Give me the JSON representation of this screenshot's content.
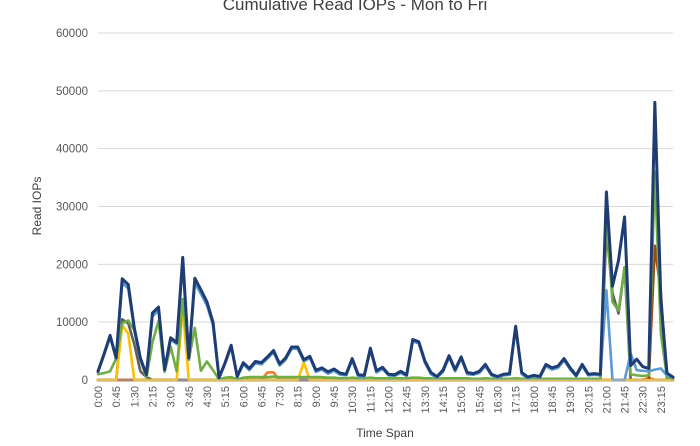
{
  "chart_data": {
    "type": "line",
    "title": "Cumulative Read IOPs - Mon to Fri",
    "xlabel": "Time Span",
    "ylabel": "Read IOPs",
    "ylim": [
      0,
      60000
    ],
    "yticks": [
      "0",
      "10000",
      "20000",
      "30000",
      "40000",
      "50000",
      "60000"
    ],
    "grid": true,
    "legend": "none",
    "x": [
      "0:00",
      "0:15",
      "0:30",
      "0:45",
      "1:00",
      "1:15",
      "1:30",
      "1:45",
      "2:00",
      "2:15",
      "2:30",
      "2:45",
      "3:00",
      "3:15",
      "3:30",
      "3:45",
      "4:00",
      "4:15",
      "4:30",
      "4:45",
      "5:00",
      "5:15",
      "5:30",
      "5:45",
      "6:00",
      "6:15",
      "6:30",
      "6:45",
      "7:00",
      "7:15",
      "7:30",
      "7:45",
      "8:00",
      "8:15",
      "8:30",
      "8:45",
      "9:00",
      "9:15",
      "9:30",
      "9:45",
      "10:00",
      "10:15",
      "10:30",
      "10:45",
      "11:00",
      "11:15",
      "11:30",
      "11:45",
      "12:00",
      "12:15",
      "12:30",
      "12:45",
      "13:00",
      "13:15",
      "13:30",
      "13:45",
      "14:00",
      "14:15",
      "14:30",
      "14:45",
      "15:00",
      "15:15",
      "15:30",
      "15:45",
      "16:00",
      "16:15",
      "16:30",
      "16:45",
      "17:00",
      "17:15",
      "17:30",
      "17:45",
      "18:00",
      "18:15",
      "18:30",
      "18:45",
      "19:00",
      "19:15",
      "19:30",
      "19:45",
      "20:00",
      "20:15",
      "20:30",
      "20:45",
      "21:00",
      "21:15",
      "21:30",
      "21:45",
      "22:00",
      "22:15",
      "22:30",
      "22:45",
      "23:00",
      "23:15",
      "23:30",
      "23:45"
    ],
    "xtick_labels": [
      "0:00",
      "0:45",
      "1:30",
      "2:15",
      "3:00",
      "3:45",
      "4:30",
      "5:15",
      "6:00",
      "6:45",
      "7:30",
      "8:15",
      "9:00",
      "9:45",
      "10:30",
      "11:15",
      "12:00",
      "12:45",
      "13:30",
      "14:15",
      "15:00",
      "15:45",
      "16:30",
      "17:15",
      "18:00",
      "18:45",
      "19:30",
      "20:15",
      "21:00",
      "21:45",
      "22:30",
      "23:15"
    ],
    "series": [
      {
        "color": "#1f3c73",
        "values": [
          1500,
          4500,
          7700,
          3800,
          17500,
          16500,
          9000,
          3800,
          900,
          11600,
          12600,
          1800,
          7300,
          6500,
          21200,
          3800,
          17600,
          15600,
          13500,
          10000,
          400,
          3000,
          6000,
          600,
          3000,
          2000,
          3200,
          3000,
          4000,
          5100,
          2800,
          3800,
          5700,
          5700,
          3500,
          4100,
          1700,
          2100,
          1400,
          1900,
          1200,
          1000,
          3700,
          900,
          800,
          5500,
          1600,
          2200,
          1000,
          900,
          1500,
          900,
          7000,
          6600,
          3300,
          1300,
          600,
          1700,
          4200,
          1800,
          4000,
          1300,
          1100,
          1500,
          2700,
          1000,
          600,
          1000,
          1100,
          9300,
          1300,
          500,
          800,
          600,
          2700,
          2100,
          2400,
          3700,
          2100,
          800,
          2700,
          1000,
          1100,
          1000,
          32500,
          16200,
          20700,
          28200,
          2500,
          3600,
          2300,
          2000,
          48000,
          13700,
          1200,
          500
        ]
      },
      {
        "color": "#5b9bd5",
        "values": [
          1300,
          4300,
          7400,
          3600,
          16800,
          15800,
          8600,
          3600,
          800,
          11000,
          12000,
          1600,
          7000,
          6200,
          20200,
          3500,
          16800,
          14900,
          12900,
          9500,
          300,
          2800,
          5700,
          500,
          2700,
          1700,
          2900,
          2700,
          3700,
          4800,
          2500,
          3500,
          5400,
          5400,
          3200,
          3800,
          1400,
          1800,
          1100,
          1600,
          900,
          800,
          3400,
          600,
          600,
          5200,
          1300,
          1900,
          800,
          700,
          1200,
          700,
          6700,
          6300,
          3000,
          1000,
          400,
          1400,
          3900,
          1500,
          3700,
          1000,
          900,
          1200,
          2400,
          800,
          400,
          800,
          900,
          9000,
          1000,
          300,
          600,
          400,
          2400,
          1800,
          2100,
          3400,
          1800,
          600,
          2400,
          800,
          900,
          800,
          15500,
          0,
          0,
          0,
          4600,
          1700,
          1600,
          1500,
          1800,
          2000,
          800,
          300
        ]
      },
      {
        "color": "#70ad47",
        "values": [
          1000,
          1200,
          1500,
          3700,
          9800,
          10300,
          8600,
          3500,
          400,
          6500,
          10200,
          1400,
          5800,
          1500,
          14000,
          3500,
          9000,
          1600,
          3200,
          1700,
          100,
          400,
          500,
          100,
          400,
          500,
          500,
          500,
          500,
          600,
          500,
          500,
          500,
          500,
          500,
          500,
          500,
          500,
          400,
          400,
          300,
          300,
          400,
          300,
          300,
          400,
          300,
          300,
          300,
          300,
          300,
          300,
          400,
          400,
          300,
          300,
          200,
          300,
          300,
          300,
          300,
          300,
          200,
          200,
          300,
          200,
          200,
          200,
          200,
          300,
          200,
          200,
          200,
          200,
          200,
          200,
          200,
          200,
          200,
          200,
          200,
          200,
          200,
          200,
          28000,
          13500,
          12000,
          19500,
          1000,
          800,
          700,
          800,
          36000,
          8000,
          500,
          200
        ]
      },
      {
        "color": "#ffc000",
        "values": [
          0,
          0,
          0,
          0,
          9500,
          8000,
          0,
          0,
          0,
          0,
          0,
          0,
          0,
          0,
          12500,
          0,
          0,
          0,
          0,
          0,
          0,
          0,
          0,
          0,
          0,
          0,
          0,
          0,
          0,
          0,
          0,
          0,
          0,
          0,
          3000,
          0,
          0,
          0,
          0,
          0,
          0,
          0,
          0,
          0,
          0,
          0,
          0,
          0,
          0,
          0,
          0,
          0,
          0,
          0,
          0,
          0,
          0,
          0,
          0,
          0,
          0,
          0,
          0,
          0,
          0,
          0,
          0,
          0,
          0,
          0,
          0,
          0,
          0,
          0,
          0,
          0,
          0,
          0,
          0,
          0,
          0,
          0,
          0,
          0,
          0,
          0,
          0,
          0,
          0,
          0,
          0,
          0,
          0,
          0,
          0,
          0
        ]
      },
      {
        "color": "#5f5f5f",
        "values": [
          0,
          0,
          0,
          0,
          10500,
          9800,
          6200,
          1500,
          500,
          0,
          0,
          0,
          0,
          0,
          0,
          0,
          0,
          0,
          0,
          0,
          0,
          0,
          0,
          0,
          0,
          0,
          0,
          0,
          0,
          0,
          0,
          0,
          0,
          0,
          0,
          0,
          0,
          0,
          0,
          0,
          0,
          0,
          0,
          0,
          0,
          0,
          0,
          0,
          0,
          0,
          0,
          0,
          0,
          0,
          0,
          0,
          0,
          0,
          0,
          0,
          0,
          0,
          0,
          0,
          0,
          0,
          0,
          0,
          0,
          0,
          0,
          0,
          0,
          0,
          0,
          0,
          0,
          0,
          0,
          0,
          0,
          0,
          0,
          0,
          26000,
          15000,
          11500,
          19500,
          0,
          0,
          0,
          0,
          0,
          0,
          0,
          0
        ]
      },
      {
        "color": "#9e480e",
        "values": [
          0,
          0,
          0,
          0,
          0,
          0,
          0,
          0,
          0,
          0,
          0,
          0,
          0,
          0,
          0,
          0,
          0,
          0,
          0,
          0,
          0,
          0,
          0,
          0,
          0,
          0,
          0,
          0,
          0,
          0,
          0,
          0,
          0,
          0,
          0,
          0,
          0,
          0,
          0,
          0,
          0,
          0,
          0,
          0,
          0,
          0,
          0,
          0,
          0,
          0,
          0,
          0,
          0,
          0,
          0,
          0,
          0,
          0,
          0,
          0,
          0,
          0,
          0,
          0,
          0,
          0,
          0,
          0,
          0,
          0,
          0,
          0,
          0,
          0,
          0,
          0,
          0,
          0,
          0,
          0,
          0,
          0,
          0,
          0,
          0,
          0,
          0,
          0,
          0,
          0,
          0,
          0,
          23200,
          15000,
          0,
          0
        ]
      },
      {
        "color": "#ed7d31",
        "values": [
          0,
          0,
          0,
          0,
          0,
          0,
          0,
          0,
          0,
          0,
          0,
          0,
          0,
          0,
          0,
          0,
          0,
          0,
          0,
          0,
          0,
          0,
          0,
          0,
          0,
          0,
          0,
          0,
          1300,
          1300,
          0,
          0,
          0,
          0,
          0,
          0,
          0,
          0,
          0,
          0,
          0,
          0,
          0,
          0,
          0,
          0,
          0,
          0,
          0,
          0,
          0,
          0,
          0,
          0,
          0,
          0,
          0,
          0,
          0,
          0,
          0,
          0,
          0,
          0,
          0,
          0,
          0,
          0,
          0,
          0,
          0,
          0,
          0,
          0,
          0,
          0,
          0,
          0,
          0,
          0,
          0,
          0,
          0,
          0,
          0,
          0,
          0,
          0,
          0,
          0,
          0,
          400,
          0,
          0,
          0,
          0
        ]
      }
    ]
  }
}
